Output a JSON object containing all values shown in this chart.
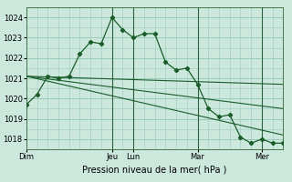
{
  "background_color": "#cce8dd",
  "grid_color": "#99ccbb",
  "line_color": "#1a5c2a",
  "marker_color": "#1a5c2a",
  "xlabel": "Pression niveau de la mer( hPa )",
  "ylim": [
    1017.5,
    1024.5
  ],
  "yticks": [
    1018,
    1019,
    1020,
    1021,
    1022,
    1023,
    1024
  ],
  "day_labels": [
    "Dim",
    "Jeu",
    "Lun",
    "Mar",
    "Mer"
  ],
  "day_positions": [
    0,
    48,
    60,
    96,
    132
  ],
  "xlim": [
    0,
    144
  ],
  "vlines": [
    48,
    60,
    96,
    132
  ],
  "series": [
    {
      "x": [
        0,
        6,
        12,
        18,
        24,
        30,
        36,
        42,
        48,
        54,
        60,
        66,
        72,
        78,
        84,
        90,
        96,
        102,
        108,
        114,
        120,
        126,
        132,
        138,
        144
      ],
      "y": [
        1019.7,
        1020.2,
        1021.1,
        1021.0,
        1021.1,
        1022.2,
        1022.8,
        1022.7,
        1024.0,
        1023.4,
        1023.0,
        1023.2,
        1023.2,
        1021.8,
        1021.4,
        1021.5,
        1020.7,
        1019.5,
        1019.1,
        1019.2,
        1018.1,
        1017.8,
        1018.0,
        1017.8,
        1017.8
      ],
      "has_markers": true
    },
    {
      "x": [
        0,
        144
      ],
      "y": [
        1021.1,
        1020.7
      ],
      "has_markers": false
    },
    {
      "x": [
        0,
        144
      ],
      "y": [
        1021.1,
        1019.5
      ],
      "has_markers": false
    },
    {
      "x": [
        0,
        144
      ],
      "y": [
        1021.1,
        1018.2
      ],
      "has_markers": false
    }
  ]
}
